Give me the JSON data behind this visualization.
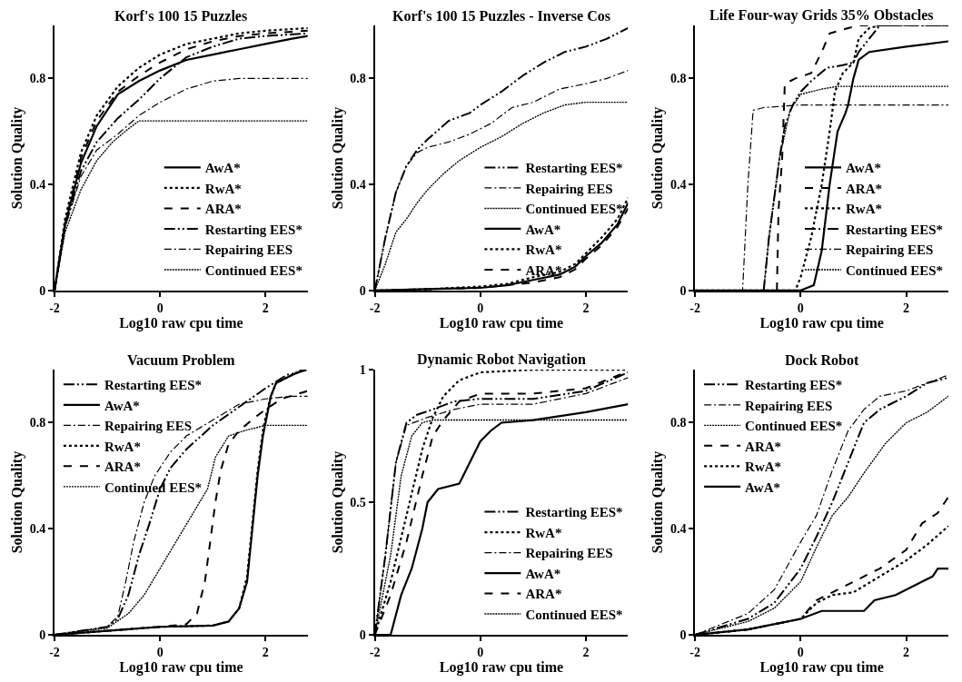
{
  "chart_data": [
    {
      "type": "line",
      "title": "Korf's 100 15 Puzzles",
      "xlabel": "Log10 raw cpu time",
      "ylabel": "Solution Quality",
      "xlim": [
        -2,
        2.8
      ],
      "xticks": [
        -2,
        0,
        2
      ],
      "ylim": [
        0,
        1
      ],
      "yticks": [
        0,
        0.4,
        0.8
      ],
      "legend": "bottom right",
      "series": [
        {
          "name": "AwA*",
          "color": "#000000",
          "line_style": "solid",
          "x": [
            -2,
            -1.8,
            -1.5,
            -1.2,
            -0.8,
            -0.4,
            0,
            0.5,
            1,
            1.5,
            2,
            2.5,
            2.8
          ],
          "values": [
            0,
            0.25,
            0.48,
            0.62,
            0.74,
            0.79,
            0.83,
            0.87,
            0.89,
            0.91,
            0.93,
            0.95,
            0.96
          ]
        },
        {
          "name": "RwA*",
          "color": "#000000",
          "line_style": "dotted",
          "x": [
            -2,
            -1.8,
            -1.5,
            -1.2,
            -0.8,
            -0.4,
            0,
            0.5,
            1,
            1.5,
            2,
            2.8
          ],
          "values": [
            0,
            0.27,
            0.52,
            0.66,
            0.77,
            0.84,
            0.89,
            0.93,
            0.95,
            0.97,
            0.98,
            0.99
          ]
        },
        {
          "name": "ARA*",
          "color": "#000000",
          "line_style": "dashed",
          "x": [
            -2,
            -1.8,
            -1.5,
            -1.2,
            -0.8,
            -0.4,
            0,
            0.5,
            1,
            1.5,
            2,
            2.8
          ],
          "values": [
            0,
            0.25,
            0.5,
            0.64,
            0.75,
            0.81,
            0.86,
            0.91,
            0.94,
            0.96,
            0.97,
            0.98
          ]
        },
        {
          "name": "Restarting EES*",
          "color": "#000000",
          "line_style": "dashdotdot",
          "x": [
            -2,
            -1.8,
            -1.5,
            -1.2,
            -0.8,
            -0.4,
            0,
            0.5,
            1,
            1.5,
            2,
            2.8
          ],
          "values": [
            0,
            0.24,
            0.45,
            0.56,
            0.65,
            0.72,
            0.8,
            0.88,
            0.92,
            0.95,
            0.96,
            0.97
          ]
        },
        {
          "name": "Repairing EES",
          "color": "#000000",
          "line_style": "dashdot",
          "x": [
            -2,
            -1.8,
            -1.5,
            -1.2,
            -0.8,
            -0.4,
            0,
            0.5,
            1,
            1.5,
            2,
            2.8
          ],
          "values": [
            0,
            0.24,
            0.43,
            0.53,
            0.59,
            0.66,
            0.71,
            0.76,
            0.79,
            0.8,
            0.8,
            0.8
          ]
        },
        {
          "name": "Continued EES*",
          "color": "#000000",
          "line_style": "densedotted",
          "x": [
            -2,
            -1.8,
            -1.5,
            -1.2,
            -0.9,
            -0.6,
            -0.4,
            0,
            2.8
          ],
          "values": [
            0,
            0.22,
            0.38,
            0.49,
            0.56,
            0.61,
            0.64,
            0.64,
            0.64
          ]
        }
      ]
    },
    {
      "type": "line",
      "title": "Korf's 100 15 Puzzles - Inverse Cos",
      "xlabel": "Log10 raw cpu time",
      "ylabel": "Solution Quality",
      "xlim": [
        -2,
        2.8
      ],
      "xticks": [
        -2,
        0,
        2
      ],
      "ylim": [
        0,
        1
      ],
      "yticks": [
        0,
        0.4,
        0.8
      ],
      "legend": "bottom right",
      "series": [
        {
          "name": "Restarting EES*",
          "color": "#000000",
          "line_style": "dashdotdot",
          "x": [
            -2,
            -1.8,
            -1.6,
            -1.4,
            -1.2,
            -1,
            -0.6,
            -0.2,
            0,
            0.4,
            0.8,
            1.2,
            1.6,
            2,
            2.4,
            2.8
          ],
          "values": [
            0,
            0.2,
            0.37,
            0.47,
            0.53,
            0.57,
            0.64,
            0.67,
            0.7,
            0.75,
            0.81,
            0.86,
            0.9,
            0.92,
            0.95,
            0.99
          ]
        },
        {
          "name": "Repairing EES",
          "color": "#000000",
          "line_style": "dashdot",
          "x": [
            -2,
            -1.8,
            -1.6,
            -1.4,
            -1.2,
            -1,
            -0.6,
            -0.2,
            0.2,
            0.6,
            1,
            1.5,
            2,
            2.4,
            2.8
          ],
          "values": [
            0,
            0.2,
            0.37,
            0.47,
            0.52,
            0.54,
            0.56,
            0.59,
            0.63,
            0.69,
            0.71,
            0.76,
            0.78,
            0.8,
            0.83
          ]
        },
        {
          "name": "Continued EES*",
          "color": "#000000",
          "line_style": "densedotted",
          "x": [
            -2,
            -1.8,
            -1.6,
            -1.4,
            -1.2,
            -1,
            -0.7,
            -0.4,
            0,
            0.4,
            0.8,
            1.2,
            1.6,
            2,
            2.8
          ],
          "values": [
            0,
            0.1,
            0.22,
            0.27,
            0.33,
            0.38,
            0.44,
            0.49,
            0.54,
            0.58,
            0.63,
            0.67,
            0.7,
            0.71,
            0.71
          ]
        },
        {
          "name": "AwA*",
          "color": "#000000",
          "line_style": "solid",
          "x": [
            -2,
            -1,
            0,
            0.5,
            1,
            1.5,
            1.8,
            2,
            2.3,
            2.6,
            2.8
          ],
          "values": [
            0,
            0.005,
            0.01,
            0.02,
            0.04,
            0.06,
            0.09,
            0.13,
            0.18,
            0.25,
            0.33
          ]
        },
        {
          "name": "RwA*",
          "color": "#000000",
          "line_style": "dotted",
          "x": [
            -2,
            -1,
            0,
            0.5,
            1,
            1.5,
            1.8,
            2,
            2.3,
            2.6,
            2.8
          ],
          "values": [
            0,
            0.005,
            0.015,
            0.025,
            0.05,
            0.07,
            0.1,
            0.14,
            0.2,
            0.27,
            0.35
          ]
        },
        {
          "name": "ARA*",
          "color": "#000000",
          "line_style": "dashed",
          "x": [
            -2,
            -1,
            0,
            0.5,
            1,
            1.5,
            1.8,
            2,
            2.3,
            2.6,
            2.8
          ],
          "values": [
            0,
            0.005,
            0.01,
            0.02,
            0.03,
            0.05,
            0.08,
            0.12,
            0.17,
            0.24,
            0.31
          ]
        }
      ]
    },
    {
      "type": "line",
      "title": "Life Four-way Grids 35% Obstacles",
      "xlabel": "Log10 raw cpu time",
      "ylabel": "Solution Quality",
      "xlim": [
        -2,
        2.8
      ],
      "xticks": [
        -2,
        0,
        2
      ],
      "ylim": [
        0,
        1
      ],
      "yticks": [
        0,
        0.4,
        0.8
      ],
      "legend": "bottom right",
      "series": [
        {
          "name": "AwA*",
          "color": "#000000",
          "line_style": "solid",
          "x": [
            -2,
            0,
            0.25,
            0.4,
            0.55,
            0.7,
            0.85,
            0.9,
            1,
            1.1,
            1.3,
            2,
            2.8
          ],
          "values": [
            0,
            0,
            0.02,
            0.15,
            0.4,
            0.6,
            0.67,
            0.7,
            0.8,
            0.87,
            0.9,
            0.92,
            0.94
          ]
        },
        {
          "name": "ARA*",
          "color": "#000000",
          "line_style": "dashed",
          "x": [
            -2,
            -0.45,
            -0.42,
            -0.35,
            -0.3,
            -0.1,
            0.2,
            0.4,
            0.55,
            0.9,
            1.1,
            2.8
          ],
          "values": [
            0,
            0,
            0.3,
            0.5,
            0.78,
            0.8,
            0.82,
            0.9,
            0.97,
            0.99,
            1,
            1
          ]
        },
        {
          "name": "RwA*",
          "color": "#000000",
          "line_style": "dotted",
          "x": [
            -2,
            -0.1,
            0,
            0.2,
            0.4,
            0.55,
            0.65,
            0.8,
            1,
            1.1,
            1.3,
            1.5,
            2.8
          ],
          "values": [
            0,
            0,
            0.05,
            0.2,
            0.4,
            0.6,
            0.75,
            0.82,
            0.86,
            0.95,
            0.99,
            1,
            1
          ]
        },
        {
          "name": "Restarting EES*",
          "color": "#000000",
          "line_style": "dashdotdot",
          "x": [
            -2,
            -0.7,
            -0.6,
            -0.4,
            -0.3,
            -0.15,
            0,
            0.2,
            0.5,
            0.8,
            1,
            1.1,
            1.5,
            2.8
          ],
          "values": [
            0,
            0,
            0.2,
            0.5,
            0.62,
            0.7,
            0.75,
            0.79,
            0.84,
            0.85,
            0.86,
            0.9,
            1,
            1
          ]
        },
        {
          "name": "Repairing EES",
          "color": "#000000",
          "line_style": "dashdot",
          "x": [
            -2,
            -1.1,
            -1,
            -0.9,
            -0.7,
            0,
            1,
            2.8
          ],
          "values": [
            0,
            0,
            0.4,
            0.68,
            0.69,
            0.7,
            0.7,
            0.7
          ]
        },
        {
          "name": "Continued EES*",
          "color": "#000000",
          "line_style": "densedotted",
          "x": [
            -2,
            -0.7,
            -0.6,
            -0.4,
            -0.2,
            0,
            0.4,
            0.7,
            2.8
          ],
          "values": [
            0,
            0,
            0.2,
            0.5,
            0.68,
            0.74,
            0.76,
            0.77,
            0.77
          ]
        }
      ]
    },
    {
      "type": "line",
      "title": "Vacuum Problem",
      "xlabel": "Log10 raw cpu time",
      "ylabel": "Solution Quality",
      "xlim": [
        -2,
        2.8
      ],
      "xticks": [
        -2,
        0,
        2
      ],
      "ylim": [
        0,
        1
      ],
      "yticks": [
        0,
        0.4,
        0.8
      ],
      "legend": "top left",
      "series": [
        {
          "name": "Restarting EES*",
          "color": "#000000",
          "line_style": "dashdotdot",
          "x": [
            -2,
            -1,
            -0.8,
            -0.6,
            -0.4,
            -0.2,
            0,
            0.2,
            0.5,
            1,
            1.5,
            2,
            2.4,
            2.8
          ],
          "values": [
            0,
            0.03,
            0.06,
            0.15,
            0.3,
            0.42,
            0.55,
            0.63,
            0.7,
            0.79,
            0.86,
            0.93,
            0.98,
            1
          ]
        },
        {
          "name": "AwA*",
          "color": "#000000",
          "line_style": "solid",
          "x": [
            -2,
            -1,
            0,
            1,
            1.3,
            1.5,
            1.65,
            1.75,
            1.85,
            1.95,
            2,
            2.1,
            2.2,
            2.5,
            2.75
          ],
          "values": [
            0,
            0.015,
            0.03,
            0.035,
            0.05,
            0.1,
            0.2,
            0.4,
            0.6,
            0.75,
            0.8,
            0.9,
            0.95,
            0.98,
            1
          ]
        },
        {
          "name": "Repairing EES",
          "color": "#000000",
          "line_style": "dashdot",
          "x": [
            -2,
            -1,
            -0.8,
            -0.65,
            -0.5,
            -0.3,
            -0.1,
            0.2,
            0.5,
            1,
            1.5,
            2,
            2.5,
            2.8
          ],
          "values": [
            0,
            0.03,
            0.07,
            0.2,
            0.35,
            0.5,
            0.6,
            0.69,
            0.75,
            0.81,
            0.87,
            0.89,
            0.9,
            0.9
          ]
        },
        {
          "name": "RwA*",
          "color": "#000000",
          "line_style": "dotted",
          "x": [
            -2,
            -1,
            0,
            1,
            1.3,
            1.5,
            1.65,
            1.75,
            1.85,
            1.95,
            2,
            2.1,
            2.2,
            2.5,
            2.7
          ],
          "values": [
            0,
            0.015,
            0.03,
            0.035,
            0.05,
            0.1,
            0.22,
            0.42,
            0.62,
            0.77,
            0.82,
            0.9,
            0.95,
            0.98,
            1
          ]
        },
        {
          "name": "ARA*",
          "color": "#000000",
          "line_style": "dashed",
          "x": [
            -2,
            -1,
            0,
            0.5,
            0.7,
            0.85,
            0.95,
            1.05,
            1.15,
            1.3,
            1.5,
            1.8,
            2,
            2.3,
            2.8
          ],
          "values": [
            0,
            0.015,
            0.03,
            0.04,
            0.08,
            0.2,
            0.35,
            0.5,
            0.62,
            0.72,
            0.77,
            0.82,
            0.85,
            0.89,
            0.92
          ]
        },
        {
          "name": "Continued EES*",
          "color": "#000000",
          "line_style": "densedotted",
          "x": [
            -2,
            -1,
            -0.6,
            -0.3,
            0,
            0.3,
            0.6,
            0.9,
            1.05,
            1.3,
            1.6,
            2,
            2.8
          ],
          "values": [
            0,
            0.025,
            0.08,
            0.15,
            0.25,
            0.35,
            0.45,
            0.55,
            0.67,
            0.75,
            0.77,
            0.79,
            0.79
          ]
        }
      ]
    },
    {
      "type": "line",
      "title": "Dynamic Robot Navigation",
      "xlabel": "Log10 raw cpu time",
      "ylabel": "Solution Quality",
      "xlim": [
        -2,
        2.8
      ],
      "xticks": [
        -2,
        0,
        2
      ],
      "ylim": [
        0,
        1
      ],
      "yticks": [
        0,
        0.5,
        1
      ],
      "legend": "bottom right",
      "series": [
        {
          "name": "Restarting EES*",
          "color": "#000000",
          "line_style": "dashdotdot",
          "x": [
            -2,
            -1.8,
            -1.6,
            -1.4,
            -1.2,
            -0.9,
            -0.5,
            0,
            1,
            2,
            2.8
          ],
          "values": [
            0,
            0.3,
            0.65,
            0.8,
            0.83,
            0.85,
            0.88,
            0.89,
            0.89,
            0.92,
            0.99
          ]
        },
        {
          "name": "RwA*",
          "color": "#000000",
          "line_style": "dotted",
          "x": [
            -2,
            -1.7,
            -1.4,
            -1.1,
            -0.9,
            -0.7,
            -0.4,
            0,
            1,
            2.8
          ],
          "values": [
            0,
            0.2,
            0.45,
            0.7,
            0.82,
            0.9,
            0.96,
            0.99,
            1,
            1
          ]
        },
        {
          "name": "Repairing EES",
          "color": "#000000",
          "line_style": "dashdot",
          "x": [
            -2,
            -1.8,
            -1.6,
            -1.4,
            -1,
            -0.5,
            0,
            1,
            2,
            2.8
          ],
          "values": [
            0,
            0.3,
            0.65,
            0.79,
            0.82,
            0.85,
            0.87,
            0.87,
            0.91,
            0.97
          ]
        },
        {
          "name": "AwA*",
          "color": "#000000",
          "line_style": "solid",
          "x": [
            -2,
            -1.7,
            -1.5,
            -1.3,
            -1.1,
            -1,
            -0.8,
            -0.4,
            -0.2,
            0,
            0.2,
            0.4,
            1,
            2,
            2.8
          ],
          "values": [
            0,
            0,
            0.15,
            0.25,
            0.4,
            0.5,
            0.55,
            0.57,
            0.65,
            0.73,
            0.77,
            0.8,
            0.81,
            0.84,
            0.87
          ]
        },
        {
          "name": "ARA*",
          "color": "#000000",
          "line_style": "dashed",
          "x": [
            -2,
            -1.7,
            -1.4,
            -1.1,
            -0.9,
            -0.7,
            -0.4,
            0,
            1,
            1.5,
            2,
            2.75
          ],
          "values": [
            0,
            0.15,
            0.35,
            0.6,
            0.75,
            0.81,
            0.88,
            0.91,
            0.91,
            0.92,
            0.93,
            0.99
          ]
        },
        {
          "name": "Continued EES*",
          "color": "#000000",
          "line_style": "densedotted",
          "x": [
            -2,
            -1.7,
            -1.5,
            -1.3,
            -1.1,
            -0.9,
            2.8
          ],
          "values": [
            0,
            0.3,
            0.6,
            0.75,
            0.8,
            0.81,
            0.81
          ]
        }
      ]
    },
    {
      "type": "line",
      "title": "Dock Robot",
      "xlabel": "Log10 raw cpu time",
      "ylabel": "Solution Quality",
      "xlim": [
        -2,
        2.8
      ],
      "xticks": [
        -2,
        0,
        2
      ],
      "ylim": [
        0,
        1
      ],
      "yticks": [
        0,
        0.4,
        0.8
      ],
      "legend": "top left",
      "series": [
        {
          "name": "Restarting EES*",
          "color": "#000000",
          "line_style": "dashdotdot",
          "x": [
            -2,
            -1,
            -0.5,
            0,
            0.3,
            0.6,
            0.9,
            1.2,
            1.5,
            2,
            2.4,
            2.8
          ],
          "values": [
            0,
            0.06,
            0.12,
            0.25,
            0.37,
            0.5,
            0.65,
            0.8,
            0.85,
            0.9,
            0.95,
            0.97
          ]
        },
        {
          "name": "Repairing EES",
          "color": "#000000",
          "line_style": "dashdot",
          "x": [
            -2,
            -1,
            -0.5,
            0,
            0.3,
            0.6,
            0.9,
            1.2,
            1.5,
            2,
            2.4,
            2.8
          ],
          "values": [
            0,
            0.08,
            0.17,
            0.35,
            0.45,
            0.62,
            0.77,
            0.85,
            0.9,
            0.92,
            0.95,
            0.98
          ]
        },
        {
          "name": "Continued EES*",
          "color": "#000000",
          "line_style": "densedotted",
          "x": [
            -2,
            -1,
            -0.5,
            0,
            0.3,
            0.6,
            0.9,
            1.2,
            1.6,
            2,
            2.4,
            2.8
          ],
          "values": [
            0,
            0.05,
            0.1,
            0.2,
            0.33,
            0.45,
            0.52,
            0.61,
            0.72,
            0.8,
            0.84,
            0.9
          ]
        },
        {
          "name": "ARA*",
          "color": "#000000",
          "line_style": "dashed",
          "x": [
            -2,
            -1,
            0,
            0.3,
            0.6,
            1,
            1.5,
            2,
            2.3,
            2.6,
            2.8
          ],
          "values": [
            0,
            0.02,
            0.06,
            0.13,
            0.16,
            0.2,
            0.25,
            0.32,
            0.42,
            0.46,
            0.52
          ]
        },
        {
          "name": "RwA*",
          "color": "#000000",
          "line_style": "dotted",
          "x": [
            -2,
            -1,
            0,
            0.3,
            0.6,
            1,
            1.5,
            2,
            2.4,
            2.8
          ],
          "values": [
            0,
            0.02,
            0.06,
            0.12,
            0.15,
            0.16,
            0.22,
            0.28,
            0.34,
            0.41
          ]
        },
        {
          "name": "AwA*",
          "color": "#000000",
          "line_style": "solid",
          "x": [
            -2,
            -1,
            0,
            0.4,
            1,
            1.2,
            1.4,
            1.8,
            2.2,
            2.5,
            2.6,
            2.8
          ],
          "values": [
            0,
            0.02,
            0.06,
            0.09,
            0.09,
            0.09,
            0.13,
            0.15,
            0.19,
            0.22,
            0.25,
            0.25
          ]
        }
      ]
    }
  ]
}
